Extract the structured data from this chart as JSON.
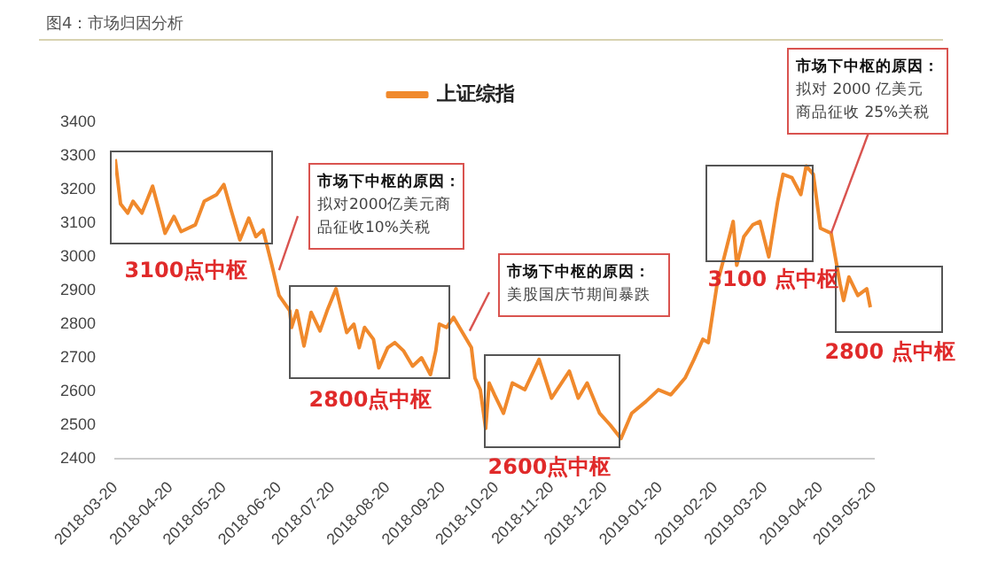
{
  "chart_data": {
    "type": "line",
    "title": "图4：市场归因分析",
    "x": [
      "2018-03-20",
      "2018-03-23",
      "2018-03-27",
      "2018-03-30",
      "2018-04-04",
      "2018-04-10",
      "2018-04-14",
      "2018-04-17",
      "2018-04-22",
      "2018-04-26",
      "2018-05-04",
      "2018-05-09",
      "2018-05-16",
      "2018-05-20",
      "2018-05-24",
      "2018-05-29",
      "2018-06-03",
      "2018-06-07",
      "2018-06-11",
      "2018-06-16",
      "2018-06-20",
      "2018-06-26",
      "2018-06-27",
      "2018-06-30",
      "2018-07-04",
      "2018-07-08",
      "2018-07-13",
      "2018-07-17",
      "2018-07-22",
      "2018-07-28",
      "2018-08-01",
      "2018-08-04",
      "2018-08-07",
      "2018-08-12",
      "2018-08-15",
      "2018-08-20",
      "2018-08-24",
      "2018-08-29",
      "2018-09-03",
      "2018-09-08",
      "2018-09-13",
      "2018-09-16",
      "2018-09-18",
      "2018-09-22",
      "2018-09-26",
      "2018-10-06",
      "2018-10-08",
      "2018-10-11",
      "2018-10-14",
      "2018-10-16",
      "2018-10-19",
      "2018-10-24",
      "2018-10-29",
      "2018-11-05",
      "2018-11-13",
      "2018-11-20",
      "2018-11-30",
      "2018-12-05",
      "2018-12-10",
      "2018-12-17",
      "2018-12-23",
      "2018-12-29",
      "2019-01-04",
      "2019-01-12",
      "2019-01-19",
      "2019-01-26",
      "2019-02-03",
      "2019-02-08",
      "2019-02-13",
      "2019-02-16",
      "2019-02-21",
      "2019-02-25",
      "2019-03-02",
      "2019-03-04",
      "2019-03-08",
      "2019-03-13",
      "2019-03-17",
      "2019-03-22",
      "2019-03-27",
      "2019-03-30",
      "2019-04-04",
      "2019-04-09",
      "2019-04-12",
      "2019-04-16",
      "2019-04-20",
      "2019-04-26",
      "2019-05-01",
      "2019-05-03",
      "2019-05-06",
      "2019-05-11",
      "2019-05-16",
      "2019-05-18"
    ],
    "series": [
      {
        "name": "上证综指",
        "color": "#f0892c",
        "values": [
          3290,
          3157,
          3130,
          3165,
          3130,
          3210,
          3130,
          3070,
          3120,
          3075,
          3095,
          3165,
          3185,
          3215,
          3140,
          3050,
          3115,
          3060,
          3080,
          2975,
          2885,
          2840,
          2790,
          2840,
          2735,
          2835,
          2780,
          2840,
          2905,
          2775,
          2800,
          2730,
          2790,
          2755,
          2670,
          2730,
          2745,
          2720,
          2675,
          2700,
          2650,
          2720,
          2800,
          2790,
          2820,
          2730,
          2640,
          2605,
          2490,
          2625,
          2590,
          2535,
          2625,
          2605,
          2695,
          2580,
          2660,
          2580,
          2625,
          2535,
          2500,
          2460,
          2535,
          2570,
          2605,
          2590,
          2640,
          2695,
          2755,
          2745,
          2920,
          3000,
          3105,
          2975,
          3060,
          3095,
          3105,
          3000,
          3165,
          3245,
          3235,
          3185,
          3270,
          3245,
          3085,
          3070,
          2920,
          2870,
          2940,
          2885,
          2905,
          2850
        ]
      }
    ],
    "xlim": [
      "2018-03-20",
      "2019-05-20"
    ],
    "xticks": [
      "2018-03-20",
      "2018-04-20",
      "2018-05-20",
      "2018-06-20",
      "2018-07-20",
      "2018-08-20",
      "2018-09-20",
      "2018-10-20",
      "2018-11-20",
      "2018-12-20",
      "2019-01-20",
      "2019-02-20",
      "2019-03-20",
      "2019-04-20",
      "2019-05-20"
    ],
    "ylim": [
      2400,
      3400
    ],
    "yticks": [
      2400,
      2500,
      2600,
      2700,
      2800,
      2900,
      3000,
      3100,
      3200,
      3300,
      3400
    ],
    "grid": false,
    "legend": "top",
    "marker": "none",
    "line_style": "solid",
    "annotations": [
      "3100点中枢",
      "2800点中枢",
      "2600点中枢",
      "3100 点中枢",
      "2800 点中枢",
      "市场下中枢的原因：",
      {
        "text": "拟对2000亿美元商品征收10%关税",
        "x": "2018-06-20",
        "y": 2960
      },
      "市场下中枢的原因：",
      {
        "text": "美股国庆节期间暴跌",
        "x": "2018-10-05",
        "y": 2780
      },
      "市场下中枢的原因：",
      {
        "text": "拟对 2000 亿美元商品征收 25%关税",
        "x": "2019-04-26",
        "y": 3070
      }
    ]
  }
}
